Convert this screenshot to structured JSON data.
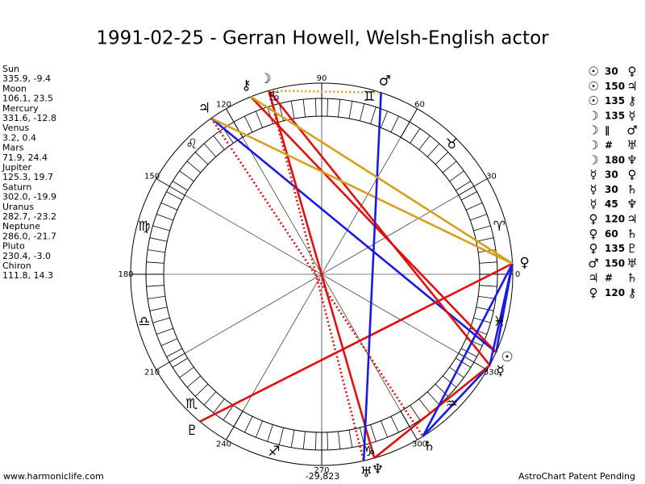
{
  "title": "1991-02-25 - Gerran Howell, Welsh-English actor",
  "planets": [
    {
      "name": "Sun",
      "coords": "335.9, -9.4",
      "lon": 335.9,
      "glyph": "☉"
    },
    {
      "name": "Moon",
      "coords": "106.1, 23.5",
      "lon": 106.1,
      "glyph": "☽"
    },
    {
      "name": "Mercury",
      "coords": "331.6, -12.8",
      "lon": 331.6,
      "glyph": "☿"
    },
    {
      "name": "Venus",
      "coords": "3.2, 0.4",
      "lon": 3.2,
      "glyph": "♀"
    },
    {
      "name": "Mars",
      "coords": "71.9, 24.4",
      "lon": 71.9,
      "glyph": "♂"
    },
    {
      "name": "Jupiter",
      "coords": "125.3, 19.7",
      "lon": 125.3,
      "glyph": "♃"
    },
    {
      "name": "Saturn",
      "coords": "302.0, -19.9",
      "lon": 302.0,
      "glyph": "♄"
    },
    {
      "name": "Uranus",
      "coords": "282.7, -23.2",
      "lon": 282.7,
      "glyph": "♅"
    },
    {
      "name": "Neptune",
      "coords": "286.0, -21.7",
      "lon": 286.0,
      "glyph": "♆"
    },
    {
      "name": "Pluto",
      "coords": "230.4, -3.0",
      "lon": 230.4,
      "glyph": "♇"
    },
    {
      "name": "Chiron",
      "coords": "111.8, 14.3",
      "lon": 111.8,
      "glyph": "⚷"
    }
  ],
  "aspects": [
    {
      "a": "☉",
      "aspect": "30",
      "b": "♀"
    },
    {
      "a": "☉",
      "aspect": "150",
      "b": "♃"
    },
    {
      "a": "☉",
      "aspect": "135",
      "b": "⚷"
    },
    {
      "a": "☽",
      "aspect": "135",
      "b": "☿"
    },
    {
      "a": "☽",
      "aspect": "∥",
      "b": "♂"
    },
    {
      "a": "☽",
      "aspect": "#",
      "b": "♅"
    },
    {
      "a": "☽",
      "aspect": "180",
      "b": "♆"
    },
    {
      "a": "☿",
      "aspect": "30",
      "b": "♀"
    },
    {
      "a": "☿",
      "aspect": "30",
      "b": "♄"
    },
    {
      "a": "☿",
      "aspect": "45",
      "b": "♆"
    },
    {
      "a": "♀",
      "aspect": "120",
      "b": "♃"
    },
    {
      "a": "♀",
      "aspect": "60",
      "b": "♄"
    },
    {
      "a": "♀",
      "aspect": "135",
      "b": "♇"
    },
    {
      "a": "♂",
      "aspect": "150",
      "b": "♅"
    },
    {
      "a": "♃",
      "aspect": "#",
      "b": "♄"
    },
    {
      "a": "♀",
      "aspect": "120",
      "b": "⚷"
    }
  ],
  "aspect_colors": {
    "30": "#1a1ae6",
    "60": "#1a1ae6",
    "150": "#1a1ae6",
    "120": "#d4a020",
    "45": "#e01010",
    "135": "#e01010",
    "180": "#e01010",
    "∥": "#d4a020",
    "#": "#e01010"
  },
  "dotted_aspects": [
    "∥",
    "#"
  ],
  "signs": [
    "♈",
    "♉",
    "♊",
    "♋",
    "♌",
    "♍",
    "♎",
    "♏",
    "♐",
    "♑",
    "♒",
    "♓"
  ],
  "degree_labels": [
    0,
    30,
    60,
    90,
    120,
    150,
    180,
    210,
    240,
    270,
    300,
    330
  ],
  "bottom_label": "-29,823",
  "footer_left": "www.harmoniclife.com",
  "footer_right": "AstroChart Patent Pending"
}
